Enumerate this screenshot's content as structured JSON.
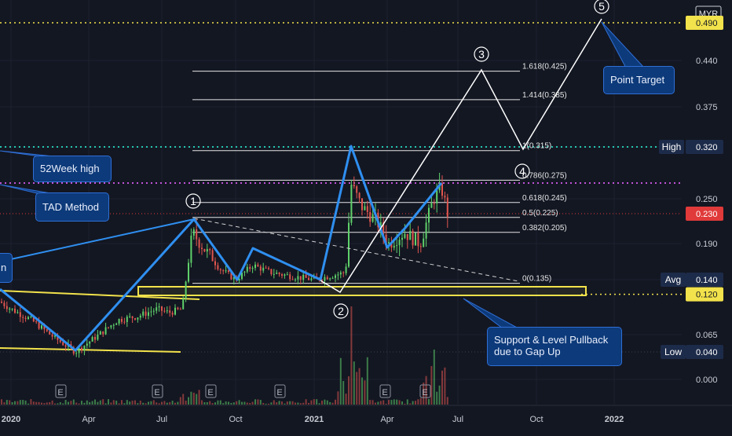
{
  "currency": "MYR",
  "colors": {
    "background": "#131722",
    "wave": "#2f8ff0",
    "projection": "#ffffff",
    "support": "#f2e24b",
    "high_line": "#24c7b0",
    "ath_line": "#c052d6",
    "current_line": "#e03a3a",
    "bull_candle": "#5fd06a",
    "bear_candle": "#e0564f",
    "axis_text": "#c9ccd3",
    "gold": "#f2e24b"
  },
  "chart_data": {
    "type": "candlestick",
    "x_axis_ticks": [
      "2020",
      "Apr",
      "Jul",
      "Oct",
      "2021",
      "Apr",
      "Jul",
      "Oct",
      "2022"
    ],
    "y_axis_ticks": [
      0.44,
      0.375,
      0.32,
      0.25,
      0.19,
      0.14,
      0.065,
      0.0
    ],
    "price_labels": {
      "target": {
        "value": "0.490",
        "color": "#f2e24b"
      },
      "high": {
        "tag": "High",
        "value": "0.320"
      },
      "current": {
        "value": "0.230"
      },
      "avg": {
        "tag": "Avg",
        "value": "0.140"
      },
      "support": {
        "value": "0.120"
      },
      "low": {
        "tag": "Low",
        "value": "0.040"
      }
    },
    "fibonacci_levels": [
      {
        "label": "1.618(0.425)",
        "value": 0.425
      },
      {
        "label": "1.414(0.385)",
        "value": 0.385
      },
      {
        "label": "1(0.315)",
        "value": 0.315
      },
      {
        "label": "0.786(0.275)",
        "value": 0.275
      },
      {
        "label": "0.618(0.245)",
        "value": 0.245
      },
      {
        "label": "0.5(0.225)",
        "value": 0.225
      },
      {
        "label": "0.382(0.205)",
        "value": 0.205
      },
      {
        "label": "0(0.135)",
        "value": 0.135
      }
    ],
    "wave_labels": [
      "1",
      "2",
      "3",
      "4",
      "5"
    ],
    "annotations": [
      {
        "id": "point-target",
        "lines": [
          "Point Target"
        ]
      },
      {
        "id": "52week-high",
        "lines": [
          "52Week high"
        ]
      },
      {
        "id": "tad-method",
        "lines": [
          "TAD Method"
        ]
      },
      {
        "id": "support-pullback",
        "lines": [
          "Support & Level Pullback",
          "due to Gap Up"
        ]
      },
      {
        "id": "left-cut",
        "lines": [
          "n"
        ]
      }
    ],
    "event_marker": "E"
  }
}
